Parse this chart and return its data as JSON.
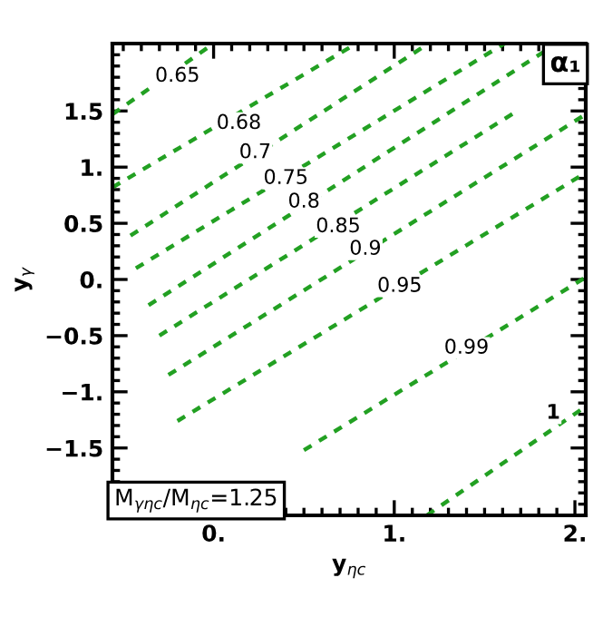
{
  "chart_data": {
    "type": "line",
    "xlabel": "y$_{ηc}$",
    "ylabel": "y$_{γ}$",
    "xlim": [
      -0.56,
      2.06
    ],
    "ylim": [
      -2.1,
      2.1
    ],
    "xticks": [
      {
        "value": 0,
        "label": "0."
      },
      {
        "value": 1,
        "label": "1."
      },
      {
        "value": 2,
        "label": "2."
      }
    ],
    "yticks": [
      {
        "value": -1.5,
        "label": "−1.5"
      },
      {
        "value": -1,
        "label": "−1."
      },
      {
        "value": -0.5,
        "label": "−0.5"
      },
      {
        "value": 0,
        "label": "0."
      },
      {
        "value": 0.5,
        "label": "0.5"
      },
      {
        "value": 1,
        "label": "1."
      },
      {
        "value": 1.5,
        "label": "1.5"
      }
    ],
    "grid": false,
    "legend": false,
    "line_style": "dashed",
    "marker": "none",
    "series": [
      {
        "color": "#22a022",
        "x": [
          -0.56,
          0.0
        ],
        "values": [
          1.47,
          2.1
        ]
      },
      {
        "color": "#22a022",
        "x": [
          -0.56,
          0.79
        ],
        "values": [
          0.82,
          2.1
        ]
      },
      {
        "color": "#22a022",
        "x": [
          -0.46,
          1.19
        ],
        "values": [
          0.39,
          2.1
        ]
      },
      {
        "color": "#22a022",
        "x": [
          -0.43,
          1.61
        ],
        "values": [
          0.1,
          2.1
        ]
      },
      {
        "color": "#22a022",
        "x": [
          -0.36,
          1.9
        ],
        "values": [
          -0.23,
          2.1
        ]
      },
      {
        "color": "#22a022",
        "x": [
          -0.3,
          1.68
        ],
        "values": [
          -0.5,
          1.5
        ]
      },
      {
        "color": "#22a022",
        "x": [
          -0.25,
          2.06
        ],
        "values": [
          -0.85,
          1.47
        ]
      },
      {
        "color": "#22a022",
        "x": [
          -0.2,
          2.06
        ],
        "values": [
          -1.26,
          0.95
        ]
      },
      {
        "color": "#22a022",
        "x": [
          0.5,
          2.06
        ],
        "values": [
          -1.52,
          0.02
        ]
      },
      {
        "color": "#22a022",
        "x": [
          1.18,
          2.06
        ],
        "values": [
          -2.1,
          -1.13
        ]
      }
    ],
    "annotations": [
      {
        "text": "0.65",
        "x": -0.2,
        "y": 1.81
      },
      {
        "text": "0.68",
        "x": 0.14,
        "y": 1.39
      },
      {
        "text": "0.7",
        "x": 0.23,
        "y": 1.13
      },
      {
        "text": "0.75",
        "x": 0.4,
        "y": 0.9
      },
      {
        "text": "0.8",
        "x": 0.5,
        "y": 0.69
      },
      {
        "text": "0.85",
        "x": 0.69,
        "y": 0.47
      },
      {
        "text": "0.9",
        "x": 0.84,
        "y": 0.27
      },
      {
        "text": "0.95",
        "x": 1.03,
        "y": -0.06
      },
      {
        "text": "0.99",
        "x": 1.4,
        "y": -0.61
      },
      {
        "text": "1",
        "x": 1.88,
        "y": -1.19
      },
      "α₁",
      "M$_{γηc}$/M$_{ηc}$=1.25"
    ]
  }
}
